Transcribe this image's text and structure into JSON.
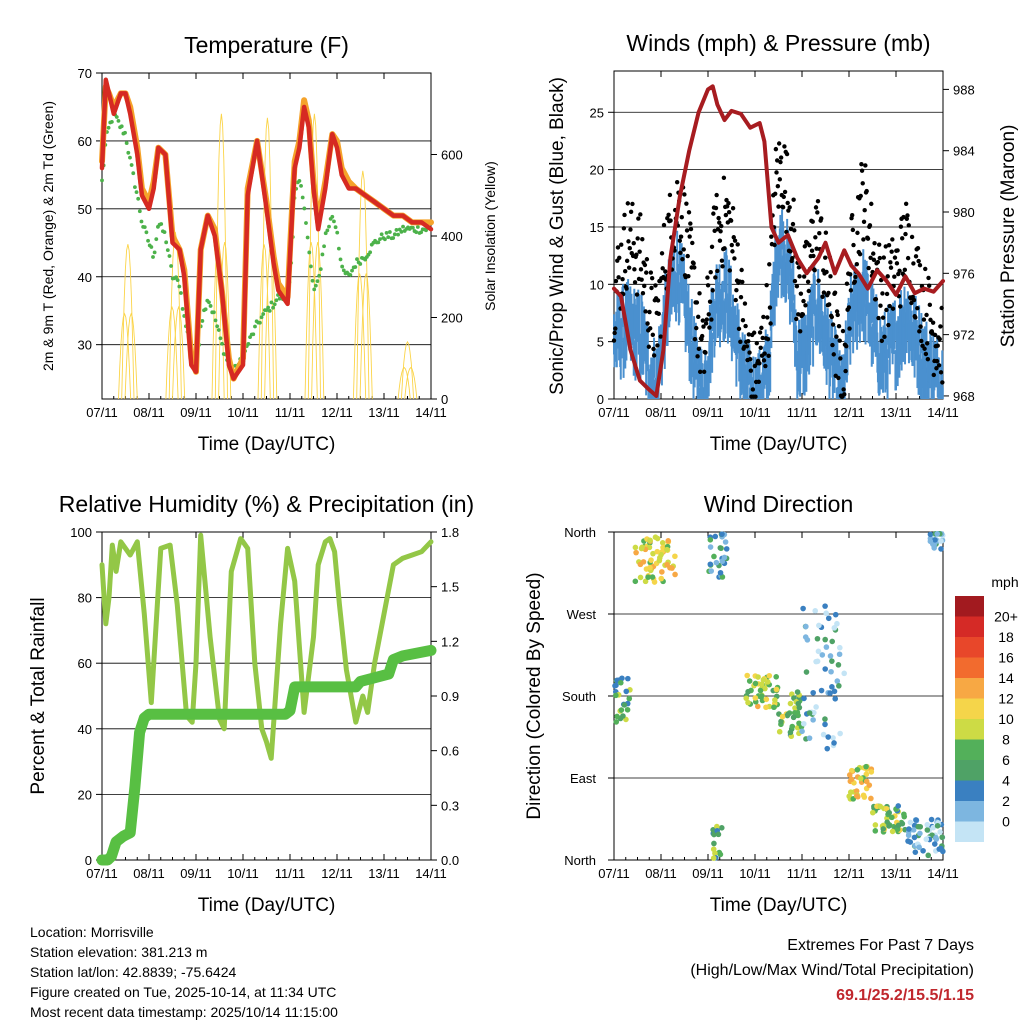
{
  "chart_data": [
    {
      "type": "line",
      "title": "Temperature (F)",
      "xlabel": "Time (Day/UTC)",
      "ylabel": "2m & 9m T (Red, Orange) & 2m Td (Green)",
      "ylabel_right": "Solar Insolation (Yellow)",
      "x_ticks": [
        "07/11",
        "08/11",
        "09/11",
        "10/11",
        "11/11",
        "12/11",
        "13/11",
        "14/11"
      ],
      "ylim": [
        22,
        70
      ],
      "y_ticks": [
        30,
        40,
        50,
        60,
        70
      ],
      "y2lim": [
        0,
        800
      ],
      "y2_ticks": [
        0,
        200,
        400,
        600
      ],
      "x": [
        0,
        0.08,
        0.15,
        0.25,
        0.4,
        0.5,
        0.6,
        0.75,
        0.85,
        1.0,
        1.1,
        1.2,
        1.35,
        1.5,
        1.65,
        1.75,
        1.9,
        2.0,
        2.1,
        2.25,
        2.4,
        2.55,
        2.7,
        2.8,
        3.0,
        3.1,
        3.3,
        3.5,
        3.65,
        3.75,
        3.95,
        4.05,
        4.1,
        4.2,
        4.3,
        4.4,
        4.5,
        4.6,
        4.75,
        4.9,
        5.0,
        5.1,
        5.25,
        5.4,
        5.6,
        5.8,
        6.0,
        6.2,
        6.4,
        6.6,
        6.8,
        7.0
      ],
      "series": [
        {
          "name": "2m T",
          "color": "#d62a22",
          "values": [
            56,
            69,
            67,
            64,
            67,
            67,
            64,
            58,
            52,
            50,
            53,
            59,
            58,
            45,
            44,
            40,
            27,
            26,
            44,
            49,
            46,
            38,
            27,
            25,
            27,
            52,
            60,
            50,
            42,
            38,
            36,
            50,
            56,
            59,
            65,
            62,
            53,
            47,
            53,
            61,
            59,
            55,
            53,
            53,
            52,
            51,
            50,
            49,
            49,
            48,
            48,
            47
          ]
        },
        {
          "name": "9m T",
          "color": "#f5a32b",
          "values": [
            57,
            68,
            67,
            65,
            67,
            67,
            65,
            59,
            53,
            51,
            54,
            59,
            58,
            46,
            44,
            41,
            28,
            26,
            44,
            49,
            47,
            38,
            28,
            25,
            28,
            53,
            60,
            51,
            43,
            39,
            37,
            51,
            57,
            60,
            66,
            63,
            54,
            48,
            54,
            61,
            60,
            56,
            54,
            53,
            52,
            51,
            50,
            49,
            49,
            48,
            48,
            48
          ]
        },
        {
          "name": "2m Td",
          "color": "#4cb24a",
          "values": [
            54,
            60,
            62,
            64,
            62,
            61,
            57,
            52,
            48,
            45,
            43,
            48,
            46,
            40,
            39,
            34,
            29,
            26,
            33,
            37,
            34,
            30,
            27,
            26,
            28,
            30,
            33,
            35,
            36,
            37,
            37,
            44,
            52,
            54,
            51,
            44,
            38,
            39,
            46,
            49,
            47,
            41,
            40,
            42,
            43,
            45,
            46,
            46,
            47,
            47,
            47,
            47
          ]
        }
      ],
      "insolation": {
        "name": "Solar Insolation",
        "color": "#fbd448",
        "day_peaks": [
          0.55,
          1.56,
          2.54,
          3.52,
          4.52,
          5.55,
          6.5
        ],
        "peak_values": [
          380,
          410,
          700,
          690,
          700,
          560,
          140
        ]
      }
    },
    {
      "type": "scatter",
      "title": "Winds (mph) & Pressure (mb)",
      "xlabel": "Time (Day/UTC)",
      "ylabel": "Sonic/Prop Wind & Gust (Blue, Black)",
      "ylabel_right": "Station Pressure (Maroon)",
      "x_ticks": [
        "07/11",
        "08/11",
        "09/11",
        "10/11",
        "11/11",
        "12/11",
        "13/11",
        "14/11"
      ],
      "ylim": [
        0,
        28.6
      ],
      "y_ticks": [
        0,
        5,
        10,
        15,
        20,
        25
      ],
      "y2lim": [
        967.8,
        989.2
      ],
      "y2_ticks": [
        968,
        972,
        976,
        980,
        984,
        988
      ],
      "wind_x": [
        0,
        0.3,
        0.6,
        0.75,
        0.9,
        1.1,
        1.35,
        1.5,
        1.75,
        1.9,
        2.15,
        2.4,
        2.6,
        2.8,
        2.95,
        3.1,
        3.3,
        3.45,
        3.6,
        3.8,
        3.9,
        4.1,
        4.3,
        4.5,
        4.7,
        4.85,
        5.05,
        5.3,
        5.5,
        5.7,
        5.85,
        6.05,
        6.2,
        6.4,
        6.6,
        6.8,
        7.0
      ],
      "wind": [
        6,
        7,
        6,
        3,
        2,
        8,
        12,
        9,
        3,
        1,
        9,
        10,
        6,
        2,
        1,
        1,
        4,
        13,
        14,
        10,
        4,
        5,
        9,
        6,
        3,
        0.5,
        8,
        10,
        7,
        4,
        5,
        6,
        8,
        6,
        4,
        3,
        2
      ],
      "gust": [
        9,
        14,
        12,
        8,
        6,
        13,
        17,
        15,
        8,
        3,
        14,
        16,
        12,
        5,
        2,
        3,
        8,
        19,
        20,
        15,
        9,
        10,
        15,
        11,
        6,
        1,
        12,
        18,
        13,
        9,
        10,
        11,
        14,
        11,
        8,
        6,
        5
      ],
      "series": [
        {
          "name": "Station Pressure",
          "color": "#a71c20",
          "x": [
            0,
            0.15,
            0.35,
            0.55,
            0.75,
            0.9,
            1.05,
            1.2,
            1.4,
            1.6,
            1.8,
            2.0,
            2.1,
            2.2,
            2.35,
            2.5,
            2.7,
            2.9,
            3.1,
            3.2,
            3.35,
            3.5,
            3.7,
            3.9,
            4.1,
            4.35,
            4.5,
            4.7,
            4.9,
            5.05,
            5.2,
            5.4,
            5.6,
            5.8,
            6.0,
            6.2,
            6.4,
            6.6,
            6.8,
            7.0
          ],
          "values": [
            975,
            974.5,
            971,
            969,
            968.4,
            968,
            971,
            977,
            981,
            984,
            986.5,
            988,
            988.2,
            987,
            986,
            986.6,
            986.4,
            985.5,
            985.8,
            984.6,
            979,
            978,
            978.5,
            977,
            976,
            977,
            978,
            976,
            977.5,
            976.5,
            976,
            975,
            976.2,
            975.5,
            974.6,
            975.8,
            974.7,
            975,
            974.8,
            975.5
          ]
        }
      ]
    },
    {
      "type": "line",
      "title": "Relative Humidity (%) & Precipitation (in)",
      "xlabel": "Time (Day/UTC)",
      "ylabel": "Percent & Total Rainfall",
      "x_ticks": [
        "07/11",
        "08/11",
        "09/11",
        "10/11",
        "11/11",
        "12/11",
        "13/11",
        "14/11"
      ],
      "ylim": [
        0,
        100
      ],
      "y_ticks": [
        0,
        20,
        40,
        60,
        80,
        100
      ],
      "y2lim": [
        0,
        1.8
      ],
      "y2_ticks": [
        "0.0",
        "0.3",
        "0.6",
        "0.9",
        "1.2",
        "1.5",
        "1.8"
      ],
      "series": [
        {
          "name": "Relative Humidity",
          "color": "#93c747",
          "x": [
            0,
            0.08,
            0.15,
            0.22,
            0.3,
            0.4,
            0.6,
            0.75,
            0.9,
            1.05,
            1.25,
            1.45,
            1.6,
            1.8,
            1.92,
            2.0,
            2.1,
            2.3,
            2.5,
            2.6,
            2.75,
            2.95,
            3.1,
            3.25,
            3.4,
            3.5,
            3.6,
            3.8,
            3.95,
            4.1,
            4.3,
            4.5,
            4.6,
            4.75,
            4.85,
            4.95,
            5.05,
            5.2,
            5.4,
            5.55,
            5.65,
            5.8,
            6.0,
            6.2,
            6.4,
            6.6,
            6.8,
            7.0
          ],
          "values": [
            90,
            72,
            80,
            96,
            88,
            97,
            93,
            97,
            75,
            48,
            95,
            96,
            78,
            44,
            42,
            60,
            99,
            68,
            43,
            40,
            88,
            98,
            95,
            60,
            40,
            36,
            31,
            72,
            95,
            85,
            45,
            68,
            90,
            97,
            98,
            94,
            78,
            58,
            42,
            50,
            45,
            60,
            75,
            90,
            92,
            93,
            94,
            97
          ]
        },
        {
          "name": "Total Precipitation",
          "color": "#58bf43",
          "x": [
            0,
            0.12,
            0.2,
            0.3,
            0.45,
            0.6,
            0.7,
            0.8,
            0.9,
            1.0,
            1.2,
            2.0,
            3.0,
            3.9,
            4.0,
            4.1,
            5.0,
            5.4,
            5.5,
            6.1,
            6.2,
            6.4,
            7.0
          ],
          "values": [
            0,
            0,
            0.02,
            0.1,
            0.13,
            0.15,
            0.4,
            0.7,
            0.78,
            0.8,
            0.8,
            0.8,
            0.8,
            0.8,
            0.82,
            0.95,
            0.95,
            0.95,
            0.98,
            1.02,
            1.1,
            1.12,
            1.15
          ]
        }
      ]
    },
    {
      "type": "scatter",
      "title": "Wind Direction",
      "xlabel": "Time (Day/UTC)",
      "ylabel": "Direction (Colored By Speed)",
      "x_ticks": [
        "07/11",
        "08/11",
        "09/11",
        "10/11",
        "11/11",
        "12/11",
        "13/11",
        "14/11"
      ],
      "y_ticks": [
        "North",
        "East",
        "South",
        "West",
        "North"
      ],
      "ylim": [
        0,
        360
      ],
      "legend_title": "mph",
      "legend_labels": [
        "20+",
        "18",
        "16",
        "14",
        "12",
        "10",
        "8",
        "6",
        "4",
        "2",
        "0"
      ],
      "legend_colors": [
        "#a21a1f",
        "#d52a26",
        "#e8472a",
        "#f26b2e",
        "#f7a844",
        "#f5d54a",
        "#cddb45",
        "#53b05a",
        "#4fa266",
        "#3a80c1",
        "#7db6e0",
        "#c4e4f5"
      ],
      "clusters": [
        {
          "x_start": 0.0,
          "x_end": 0.35,
          "dir_center": 175,
          "spread": 25,
          "speed": 6
        },
        {
          "x_start": 0.45,
          "x_end": 1.3,
          "dir_center": 330,
          "spread": 25,
          "speed": 11
        },
        {
          "x_start": 2.0,
          "x_end": 2.4,
          "dir_center": 335,
          "spread": 25,
          "speed": 5
        },
        {
          "x_start": 2.1,
          "x_end": 2.3,
          "dir_center": 20,
          "spread": 18,
          "speed": 7
        },
        {
          "x_start": 2.8,
          "x_end": 3.5,
          "dir_center": 185,
          "spread": 18,
          "speed": 10
        },
        {
          "x_start": 3.5,
          "x_end": 4.0,
          "dir_center": 160,
          "spread": 25,
          "speed": 8
        },
        {
          "x_start": 4.0,
          "x_end": 4.9,
          "dir_center": 200,
          "spread": 80,
          "speed": 3
        },
        {
          "x_start": 5.0,
          "x_end": 5.5,
          "dir_center": 85,
          "spread": 18,
          "speed": 11
        },
        {
          "x_start": 5.5,
          "x_end": 6.2,
          "dir_center": 45,
          "spread": 15,
          "speed": 8
        },
        {
          "x_start": 6.2,
          "x_end": 7.0,
          "dir_center": 25,
          "spread": 20,
          "speed": 3
        },
        {
          "x_start": 6.7,
          "x_end": 7.0,
          "dir_center": 350,
          "spread": 12,
          "speed": 3
        }
      ]
    }
  ],
  "station_info": {
    "location": "Location: Morrisville",
    "elevation": "Station elevation: 381.213 m",
    "latlon": "Station lat/lon: 42.8839; -75.6424",
    "created": "Figure created on Tue, 2025-10-14, at 11:34 UTC",
    "recent": "Most recent data timestamp: 2025/10/14 11:15:00"
  },
  "extremes": {
    "line1": "Extremes For Past 7 Days",
    "line2": "(High/Low/Max Wind/Total Precipitation)",
    "values": "69.1/25.2/15.5/1.15"
  }
}
